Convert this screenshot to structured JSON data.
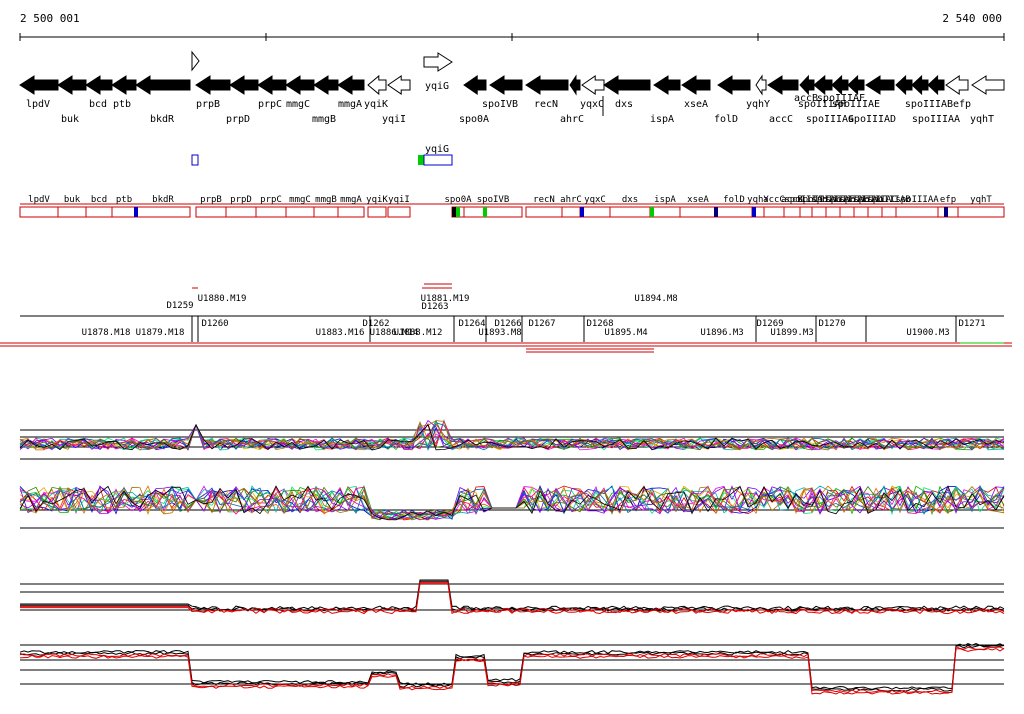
{
  "coordinates": {
    "start": "2 500 001",
    "end": "2 540 000"
  },
  "genes": [
    {
      "name": "lpdV",
      "dir": -1,
      "fill": "black"
    },
    {
      "name": "buk",
      "dir": -1,
      "fill": "black"
    },
    {
      "name": "bcd",
      "dir": -1,
      "fill": "black"
    },
    {
      "name": "ptb",
      "dir": -1,
      "fill": "black"
    },
    {
      "name": "bkdR",
      "dir": -1,
      "fill": "black"
    },
    {
      "name": "prpB",
      "dir": -1,
      "fill": "black"
    },
    {
      "name": "prpD",
      "dir": -1,
      "fill": "black"
    },
    {
      "name": "prpC",
      "dir": -1,
      "fill": "black"
    },
    {
      "name": "mmgC",
      "dir": -1,
      "fill": "black"
    },
    {
      "name": "mmgB",
      "dir": -1,
      "fill": "black"
    },
    {
      "name": "mmgA",
      "dir": -1,
      "fill": "black"
    },
    {
      "name": "yqiK",
      "dir": -1,
      "fill": "white"
    },
    {
      "name": "yqiI",
      "dir": -1,
      "fill": "white"
    },
    {
      "name": "yqiG",
      "dir": 1,
      "fill": "white"
    },
    {
      "name": "spo0A",
      "dir": -1,
      "fill": "black"
    },
    {
      "name": "spoIVB",
      "dir": -1,
      "fill": "black"
    },
    {
      "name": "recN",
      "dir": -1,
      "fill": "black"
    },
    {
      "name": "ahrC",
      "dir": -1,
      "fill": "black"
    },
    {
      "name": "yqxC",
      "dir": -1,
      "fill": "white"
    },
    {
      "name": "dxs",
      "dir": -1,
      "fill": "black"
    },
    {
      "name": "ispA",
      "dir": -1,
      "fill": "black"
    },
    {
      "name": "xseA",
      "dir": -1,
      "fill": "black"
    },
    {
      "name": "folD",
      "dir": -1,
      "fill": "black"
    },
    {
      "name": "yqhY",
      "dir": -1,
      "fill": "white"
    },
    {
      "name": "accC",
      "dir": -1,
      "fill": "black"
    },
    {
      "name": "accB",
      "dir": -1,
      "fill": "black"
    },
    {
      "name": "spoIIIAH",
      "dir": -1,
      "fill": "black"
    },
    {
      "name": "spoIIIAG",
      "dir": -1,
      "fill": "black"
    },
    {
      "name": "spoIIIAF",
      "dir": -1,
      "fill": "black"
    },
    {
      "name": "spoIIIAE",
      "dir": -1,
      "fill": "black"
    },
    {
      "name": "spoIIIAD",
      "dir": -1,
      "fill": "black"
    },
    {
      "name": "spoIIIAB",
      "dir": -1,
      "fill": "black"
    },
    {
      "name": "spoIIIAA",
      "dir": -1,
      "fill": "black"
    },
    {
      "name": "efp",
      "dir": -1,
      "fill": "white"
    },
    {
      "name": "yqhT",
      "dir": -1,
      "fill": "white"
    }
  ],
  "gene_labels": [
    {
      "text": "lpdV",
      "row": 0
    },
    {
      "text": "buk",
      "row": 1
    },
    {
      "text": "bcd",
      "row": 0
    },
    {
      "text": "ptb",
      "row": 0
    },
    {
      "text": "bkdR",
      "row": 1
    },
    {
      "text": "prpB",
      "row": 0
    },
    {
      "text": "prpD",
      "row": 1
    },
    {
      "text": "prpC",
      "row": 0
    },
    {
      "text": "mmgC",
      "row": 0
    },
    {
      "text": "mmgB",
      "row": 1
    },
    {
      "text": "mmgA",
      "row": 0
    },
    {
      "text": "yqiK",
      "row": 0
    },
    {
      "text": "yqiI",
      "row": 1
    },
    {
      "text": "yqiG",
      "row": 0
    },
    {
      "text": "spoIVB",
      "row": 0
    },
    {
      "text": "spo0A",
      "row": 1
    },
    {
      "text": "recN",
      "row": 0
    },
    {
      "text": "ahrC",
      "row": 1
    },
    {
      "text": "yqxC",
      "row": 0
    },
    {
      "text": "dxs",
      "row": 0
    },
    {
      "text": "ispA",
      "row": 1
    },
    {
      "text": "xseA",
      "row": 0
    },
    {
      "text": "folD",
      "row": 1
    },
    {
      "text": "yqhY",
      "row": 0
    },
    {
      "text": "accC",
      "row": 1
    },
    {
      "text": "accB",
      "row": -1
    },
    {
      "text": "spoIIIAF",
      "row": -1
    },
    {
      "text": "spoIIIAH",
      "row": 0
    },
    {
      "text": "spoIIIAG",
      "row": 1
    },
    {
      "text": "spoIIIAE",
      "row": 0
    },
    {
      "text": "spoIIIAD",
      "row": 1
    },
    {
      "text": "spoIIIAB",
      "row": 0
    },
    {
      "text": "spoIIIAA",
      "row": 1
    },
    {
      "text": "efp",
      "row": 0
    },
    {
      "text": "yqhT",
      "row": 1
    }
  ],
  "rna_feature_label": "yqiG",
  "transcripts": [
    "lpdV",
    "buk",
    "bcd",
    "ptb",
    "bkdR",
    "prpB",
    "prpD",
    "prpC",
    "mmgC",
    "mmgB",
    "mmgA",
    "yqiK",
    "yqiI",
    "spo0A",
    "spoIVB",
    "recN",
    "ahrC",
    "yqxC",
    "dxs",
    "ispA",
    "xseA",
    "folD",
    "yqhY",
    "accC",
    "accB",
    "spoIIIAH",
    "spoIIIAG",
    "spoIIIAF",
    "spoIIIAE",
    "spoIIIAD",
    "spoIIIAC",
    "spoIIIAB",
    "spoIIIAA",
    "efp",
    "yqhT"
  ],
  "segment_labels_upper": [
    "D1259",
    "U1880.M19",
    "U1881.M19",
    "D1263",
    "U1894.M8"
  ],
  "segment_labels_lower": [
    "U1878.M18",
    "U1879.M18",
    "D1260",
    "U1883.M16",
    "D1262",
    "U1886.M14",
    "U1888.M12",
    "D1264",
    "U1893.M8",
    "D1266",
    "D1267",
    "D1268",
    "U1895.M4",
    "U1896.M3",
    "D1269",
    "U1899.M3",
    "D1270",
    "U1900.M3",
    "D1271"
  ],
  "colors": {
    "gene_black": "#000000",
    "transcript_border": "#cc0000",
    "segment_line": "#cc0000",
    "accent_blue": "#0000cc",
    "accent_green": "#00cc00",
    "summary_red": "#dd0000"
  }
}
